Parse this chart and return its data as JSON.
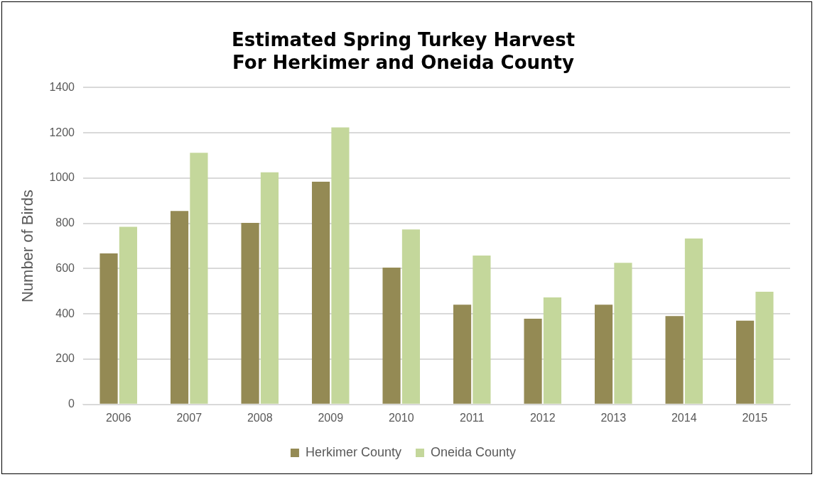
{
  "chart_data": {
    "type": "bar",
    "title": "Estimated Spring Turkey Harvest\nFor Herkimer and Oneida County",
    "ylabel": "Number of Birds",
    "categories": [
      "2006",
      "2007",
      "2008",
      "2009",
      "2010",
      "2011",
      "2012",
      "2013",
      "2014",
      "2015"
    ],
    "series": [
      {
        "name": "Herkimer County",
        "color": "#948a54",
        "values": [
          667,
          855,
          802,
          984,
          605,
          441,
          379,
          441,
          391,
          370
        ]
      },
      {
        "name": "Oneida County",
        "color": "#c4d79b",
        "values": [
          785,
          1112,
          1026,
          1224,
          773,
          658,
          473,
          626,
          733,
          498
        ]
      }
    ],
    "ylim": [
      0,
      1400
    ],
    "yticks": [
      0,
      200,
      400,
      600,
      800,
      1000,
      1200,
      1400
    ],
    "grid": "y",
    "legend": "bottom"
  }
}
